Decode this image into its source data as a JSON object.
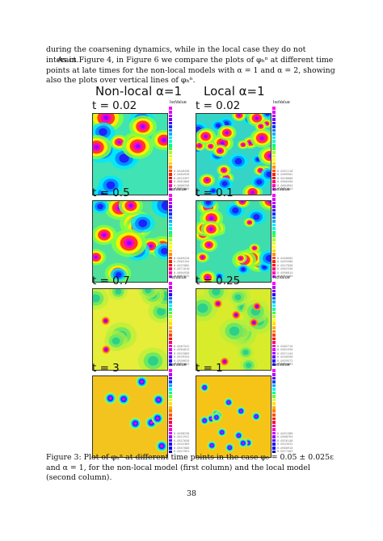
{
  "body": {
    "para1": "during the coarsening dynamics, while in the local case they do not interact.",
    "para2": "As in Figure 4, in Figure 6 we compare the plots of φₕⁿ at different time points at late times for the non-local models with α = 1 and α = 2, showing also the plots over vertical lines of φₕⁿ."
  },
  "figure": {
    "columns": [
      "Non-local α=1",
      "Local α=1"
    ],
    "legend_title": "IsoValue",
    "panels": [
      {
        "time": "t = 0.02",
        "palette": "rainbow",
        "base": "#3fe3b4",
        "legend_values": [
          "0.0446458",
          "0.0484928",
          "0.0523397",
          "0.0561866",
          "0.0600336",
          "0.0638805"
        ]
      },
      {
        "time": "t = 0.02",
        "palette": "rainbow",
        "base": "#35d4c6",
        "legend_values": [
          "0.0451118",
          "0.0489562",
          "0.0528006",
          "0.0566450",
          "0.0604894",
          "0.0663613"
        ]
      },
      {
        "time": "t = 0.5",
        "palette": "rainbow",
        "base": "#4fe09a",
        "legend_values": [
          "0.0469226",
          "0.0503154",
          "0.0537082",
          "0.0571010",
          "0.0604938",
          "0.0687675"
        ]
      },
      {
        "time": "t = 0.1",
        "palette": "rainbow",
        "base": "#3fdcae",
        "legend_values": [
          "0.0458902",
          "0.0493380",
          "0.0527858",
          "0.0562336",
          "0.0596814",
          "0.0716184"
        ]
      },
      {
        "time": "t = 0.7",
        "palette": "yellow",
        "base": "#e6ee3a",
        "legend_values": [
          "0.0487541",
          "0.0504812",
          "0.0522083",
          "0.0539354",
          "0.0556625",
          "0.0545842"
        ]
      },
      {
        "time": "t = 0.25",
        "palette": "yellow",
        "base": "#d8ec2c",
        "legend_values": [
          "0.0482716",
          "0.0501930",
          "0.0521144",
          "0.0540358",
          "0.0559572",
          "0.0486093"
        ]
      },
      {
        "time": "t = 3",
        "palette": "orange",
        "base": "#f4c41e",
        "legend_values": [
          "0.0498236",
          "0.0512947",
          "0.0527658",
          "0.0542369",
          "0.0557080",
          "0.0527991"
        ]
      },
      {
        "time": "t = 1",
        "palette": "orange",
        "base": "#f6c416",
        "legend_values": [
          "0.0491380",
          "0.0508764",
          "0.0526148",
          "0.0543532",
          "0.0560916",
          "0.0577402"
        ]
      }
    ]
  },
  "caption": "Figure 3: Plot of φₕⁿ at different time points in the case φ₀ = 0.05 ± 0.025ε and α = 1, for the non-local model (first column) and the local model (second column).",
  "page_number": "38"
}
